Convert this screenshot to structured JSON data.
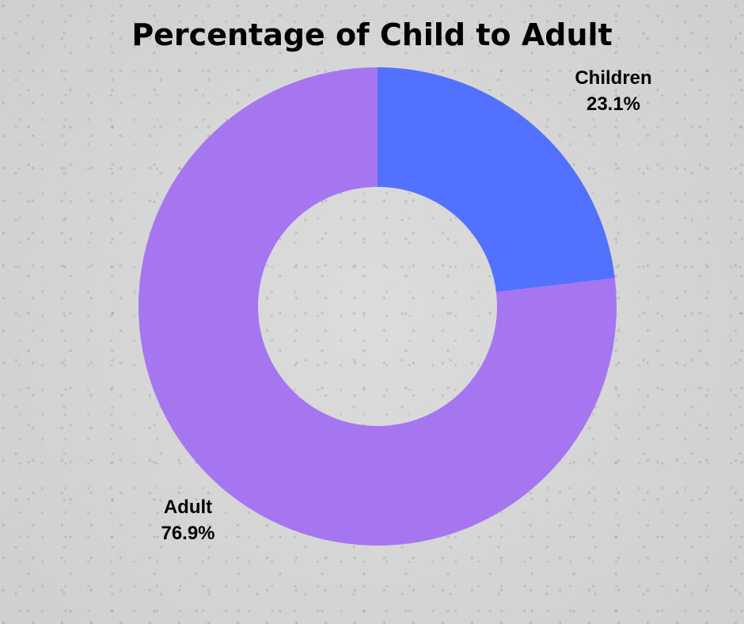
{
  "chart_data": {
    "type": "pie",
    "variant": "donut",
    "title": "Percentage of Child to Adult",
    "slices": [
      {
        "label": "Children",
        "value": 23.1,
        "value_label": "23.1%",
        "color": "#5271ff"
      },
      {
        "label": "Adult",
        "value": 76.9,
        "value_label": "76.9%",
        "color": "#a675f0"
      }
    ],
    "start_angle_deg": 0,
    "direction": "clockwise",
    "legend": "none"
  }
}
